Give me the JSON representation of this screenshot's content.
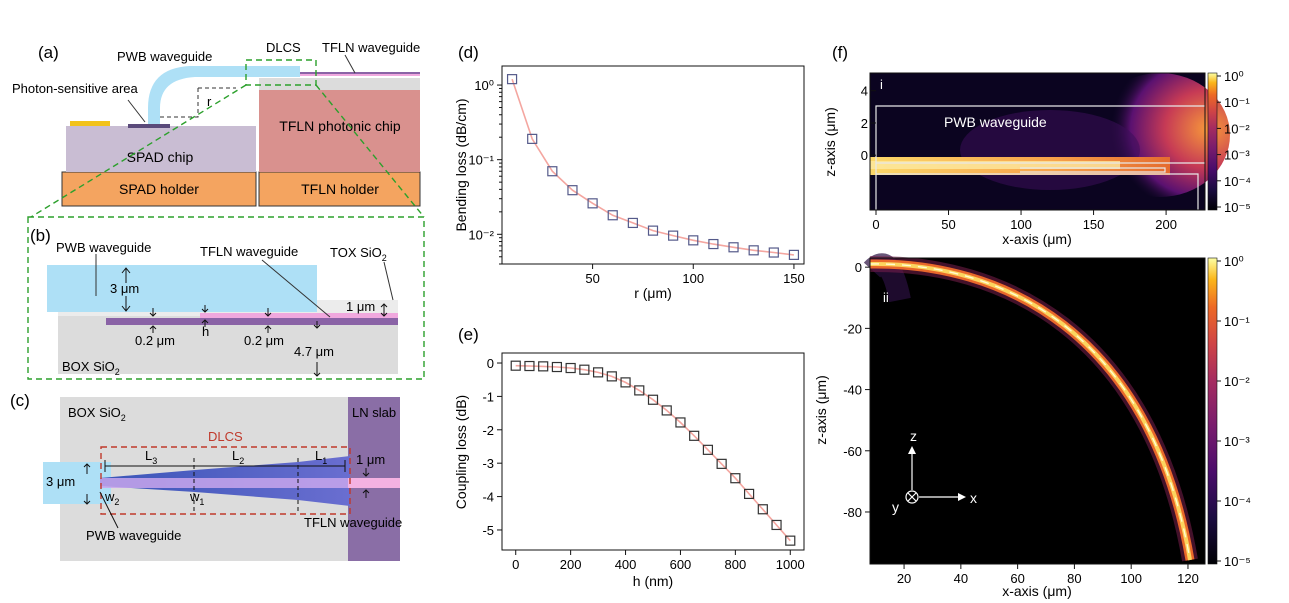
{
  "figure": {
    "panel_labels": [
      "(a)",
      "(b)",
      "(c)",
      "(d)",
      "(e)",
      "(f)"
    ],
    "panel_a": {
      "pwb_waveguide": "PWB waveguide",
      "dlcs": "DLCS",
      "tfln_waveguide": "TFLN waveguide",
      "photon_area": "Photon-sensitive area",
      "r_label": "r",
      "tfln_chip": "TFLN photonic chip",
      "spad_chip": "SPAD chip",
      "spad_holder": "SPAD holder",
      "tfln_holder": "TFLN holder"
    },
    "panel_b": {
      "pwb_waveguide": "PWB waveguide",
      "tfln_waveguide": "TFLN waveguide",
      "tox": "TOX SiO",
      "tox_sub": "2",
      "dim_3um": "3 μm",
      "dim_1um": "1 μm",
      "dim_h": "h",
      "dim_02a": "0.2 μm",
      "dim_02b": "0.2 μm",
      "dim_47": "4.7 μm",
      "box": "BOX SiO",
      "box_sub": "2"
    },
    "panel_c": {
      "box": "BOX SiO",
      "box_sub": "2",
      "dlcs": "DLCS",
      "ln_slab": "LN slab",
      "L3": "L",
      "L3_sub": "3",
      "L2": "L",
      "L2_sub": "2",
      "L1": "L",
      "L1_sub": "1",
      "w2": "w",
      "w2_sub": "2",
      "w1": "w",
      "w1_sub": "1",
      "dim_3um": "3 μm",
      "dim_1um": "1 μm",
      "tfln_waveguide": "TFLN waveguide",
      "pwb_waveguide": "PWB waveguide"
    },
    "panel_f": {
      "top_label": "PWB waveguide",
      "top_roman": "i",
      "bottom_roman": "ii",
      "axis_z": "z",
      "axis_y": "y",
      "axis_x": "x"
    },
    "colors": {
      "pwb_blue": "#aee0f6",
      "tfln_pink": "#f0a8de",
      "tfln_purple": "#8a63a6",
      "dlcs_green": "#2ca02c",
      "dlcs_red": "#c0392b",
      "holder_orange": "#f4a460",
      "spad_chip": "#c9bdd3",
      "tfln_chip": "#d9918e",
      "series_line": "#f4a6a0",
      "marker_edge": "#555a8a"
    }
  },
  "chart_data": [
    {
      "id": "d",
      "type": "line",
      "xlabel": "r (μm)",
      "ylabel": "Bending loss (dB/cm)",
      "yscale": "log",
      "xlim": [
        5,
        155
      ],
      "ylim": [
        0.004,
        1.8
      ],
      "xticks": [
        50,
        100,
        150
      ],
      "ytick_labels": [
        "10⁰",
        "10⁻¹",
        "10⁻²"
      ],
      "x": [
        10,
        20,
        30,
        40,
        50,
        60,
        70,
        80,
        90,
        100,
        110,
        120,
        130,
        140,
        150
      ],
      "y": [
        1.2,
        0.19,
        0.07,
        0.039,
        0.026,
        0.018,
        0.0142,
        0.0112,
        0.0096,
        0.0083,
        0.0074,
        0.0067,
        0.0061,
        0.0057,
        0.0053
      ],
      "markers": "open-square"
    },
    {
      "id": "e",
      "type": "line",
      "xlabel": "h (nm)",
      "ylabel": "Coupling loss (dB)",
      "xlim": [
        -50,
        1050
      ],
      "ylim": [
        -5.6,
        0.3
      ],
      "xticks": [
        0,
        200,
        400,
        600,
        800,
        1000
      ],
      "yticks": [
        0,
        -1,
        -2,
        -3,
        -4,
        -5
      ],
      "x": [
        0,
        50,
        100,
        150,
        200,
        250,
        300,
        350,
        400,
        450,
        500,
        550,
        600,
        650,
        700,
        750,
        800,
        850,
        900,
        950,
        1000
      ],
      "y": [
        -0.08,
        -0.09,
        -0.1,
        -0.12,
        -0.15,
        -0.2,
        -0.28,
        -0.4,
        -0.58,
        -0.82,
        -1.1,
        -1.42,
        -1.78,
        -2.18,
        -2.6,
        -3.02,
        -3.45,
        -3.92,
        -4.38,
        -4.85,
        -5.32
      ],
      "markers": "open-square"
    },
    {
      "id": "f-i",
      "type": "heatmap",
      "xlabel": "x-axis (μm)",
      "ylabel": "z-axis (μm)",
      "xticks": [
        0,
        50,
        100,
        150,
        200
      ],
      "yticks": [
        4,
        2,
        0
      ],
      "colorbar_labels": [
        "10⁰",
        "10⁻¹",
        "10⁻²",
        "10⁻³",
        "10⁻⁴",
        "10⁻⁵"
      ],
      "colormap": "inferno"
    },
    {
      "id": "f-ii",
      "type": "heatmap",
      "xlabel": "x-axis (μm)",
      "ylabel": "z-axis (μm)",
      "xticks": [
        20,
        40,
        60,
        80,
        100,
        120
      ],
      "yticks": [
        0,
        -20,
        -40,
        -60,
        -80
      ],
      "colorbar_labels": [
        "10⁰",
        "10⁻¹",
        "10⁻²",
        "10⁻³",
        "10⁻⁴",
        "10⁻⁵"
      ],
      "colormap": "inferno"
    }
  ]
}
